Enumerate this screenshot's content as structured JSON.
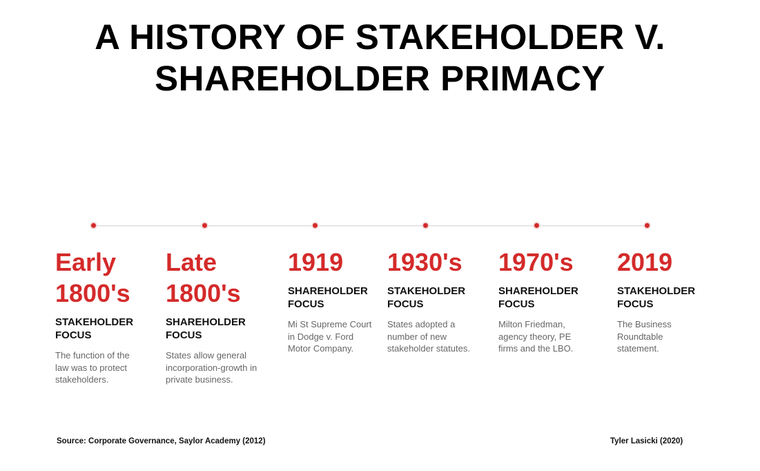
{
  "title": {
    "line1": "A HISTORY OF STAKEHOLDER V.",
    "line2": "SHAREHOLDER PRIMACY"
  },
  "accent_color": "#d42a2a",
  "timeline": [
    {
      "year_line1": "Early",
      "year_line2": "1800's",
      "focus_line1": "STAKEHOLDER",
      "focus_line2": "FOCUS",
      "description": "The function of the law was to protect stakeholders."
    },
    {
      "year_line1": "Late",
      "year_line2": "1800's",
      "focus_line1": "SHAREHOLDER",
      "focus_line2": "FOCUS",
      "description": "States allow general incorporation-growth in private business."
    },
    {
      "year_line1": "1919",
      "year_line2": "",
      "focus_line1": "SHAREHOLDER",
      "focus_line2": "FOCUS",
      "description": "Mi St Supreme Court in Dodge v. Ford Motor Company."
    },
    {
      "year_line1": "1930's",
      "year_line2": "",
      "focus_line1": "STAKEHOLDER",
      "focus_line2": "FOCUS",
      "description": "States adopted a number of new stakeholder statutes."
    },
    {
      "year_line1": "1970's",
      "year_line2": "",
      "focus_line1": "SHAREHOLDER",
      "focus_line2": "FOCUS",
      "description": "Milton Friedman, agency theory, PE firms and the LBO."
    },
    {
      "year_line1": "2019",
      "year_line2": "",
      "focus_line1": "STAKEHOLDER",
      "focus_line2": "FOCUS",
      "description": "The Business Roundtable statement."
    }
  ],
  "footer": {
    "source": "Source: Corporate Governance, Saylor Academy (2012)",
    "author": "Tyler Lasicki (2020)"
  }
}
